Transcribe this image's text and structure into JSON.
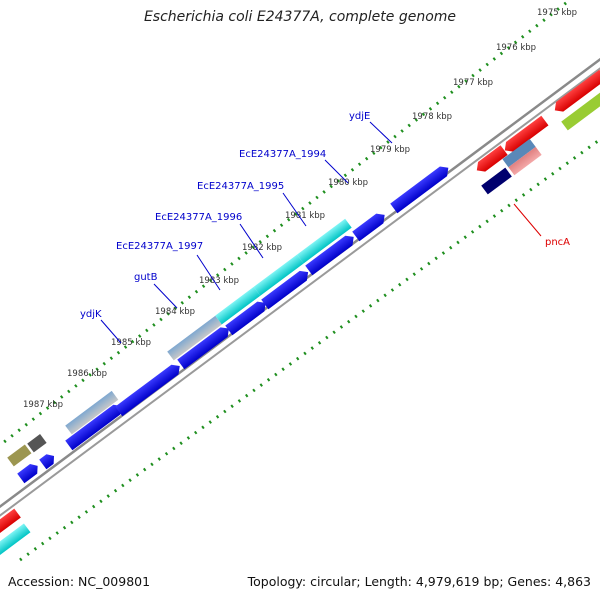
{
  "title": "Escherichia coli E24377A, complete genome",
  "footer": {
    "accession": "Accession: NC_009801",
    "summary": "Topology: circular; Length: 4,979,619 bp; Genes: 4,863"
  },
  "tick_labels": [
    "1975 kbp",
    "1976 kbp",
    "1977 kbp",
    "1978 kbp",
    "1979 kbp",
    "1980 kbp",
    "1981 kbp",
    "1982 kbp",
    "1983 kbp",
    "1984 kbp",
    "1985 kbp",
    "1986 kbp",
    "1987 kbp"
  ],
  "gene_labels": {
    "ydjE": "ydjE",
    "ecE1994": "EcE24377A_1994",
    "ecE1995": "EcE24377A_1995",
    "ecE1996": "EcE24377A_1996",
    "ecE1997": "EcE24377A_1997",
    "gutB": "gutB",
    "ydjK": "ydjK",
    "pncA": "pncA"
  },
  "colors": {
    "blue": "#0000e0",
    "cyan": "#00d8d8",
    "steel": "#4a7fb0",
    "red": "#ff0000",
    "navy": "#00006e",
    "olive": "#9c9650",
    "gray": "#555555",
    "lime": "#99cc33",
    "backbone": "#8a8a8a",
    "ticks": "#1f8f1f",
    "label_blue": "#0000cc",
    "label_red": "#dd0000"
  }
}
